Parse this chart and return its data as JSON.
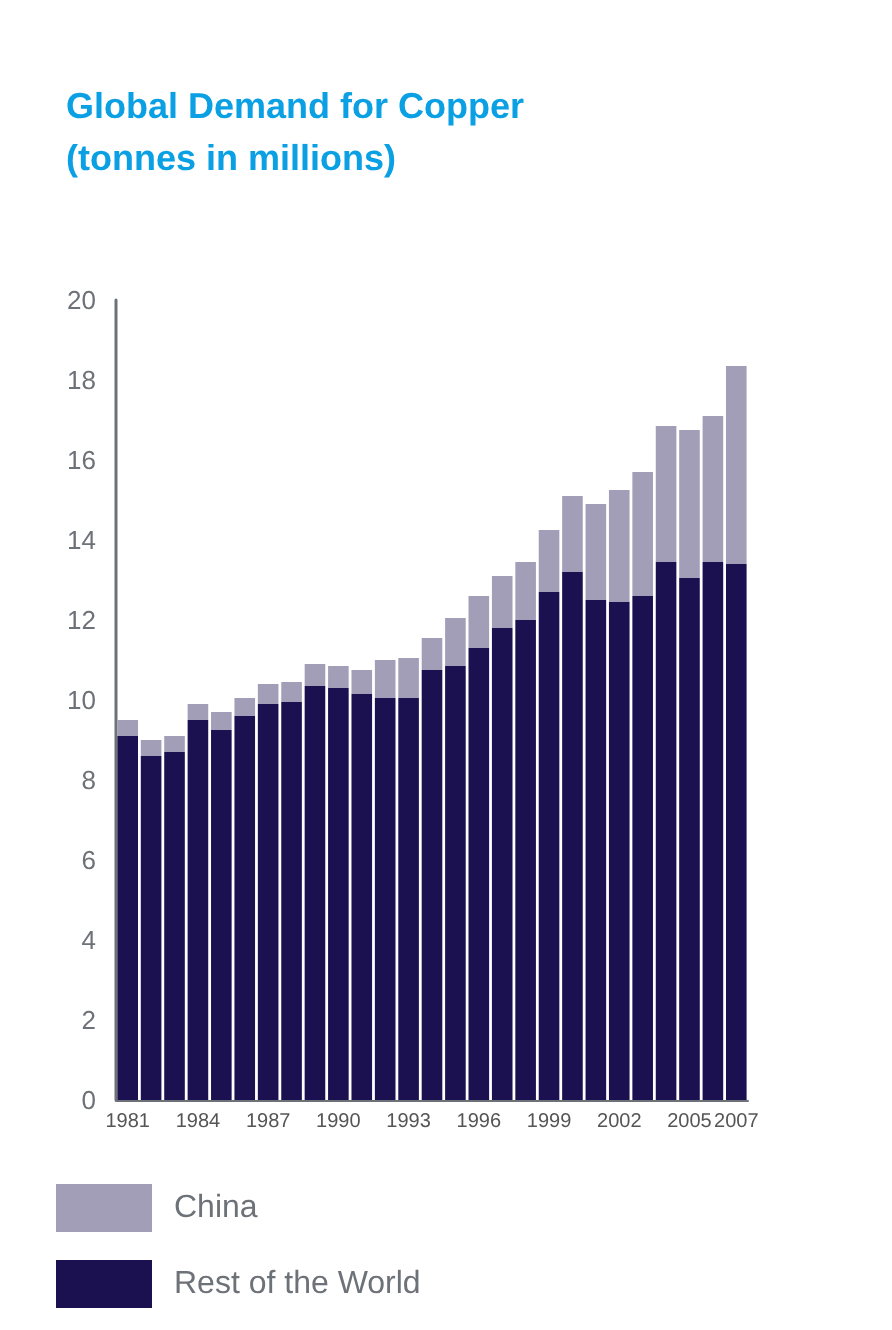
{
  "chart_data": {
    "type": "bar",
    "title": "Global Demand for Copper\n(tonnes in millions)",
    "stacked": true,
    "categories": [
      "1981",
      null,
      null,
      "1984",
      null,
      null,
      "1987",
      null,
      null,
      "1990",
      null,
      null,
      "1993",
      null,
      null,
      "1996",
      null,
      null,
      "1999",
      null,
      null,
      "2002",
      null,
      null,
      "2005",
      null,
      "2007"
    ],
    "series": [
      {
        "name": "Rest of the World",
        "color": "#1b1050",
        "values": [
          9.1,
          8.6,
          8.7,
          9.5,
          9.25,
          9.6,
          9.9,
          9.95,
          10.35,
          10.3,
          10.15,
          10.05,
          10.05,
          10.75,
          10.85,
          11.3,
          11.8,
          12.0,
          12.7,
          13.2,
          12.5,
          12.45,
          12.6,
          13.45,
          13.05,
          13.45,
          13.4
        ]
      },
      {
        "name": "China",
        "color": "#a39eb8",
        "values": [
          0.4,
          0.4,
          0.4,
          0.4,
          0.45,
          0.45,
          0.5,
          0.5,
          0.55,
          0.55,
          0.6,
          0.95,
          1.0,
          0.8,
          1.2,
          1.3,
          1.3,
          1.45,
          1.55,
          1.9,
          2.4,
          2.8,
          3.1,
          3.4,
          3.7,
          3.65,
          4.95
        ]
      }
    ],
    "ylim": [
      0,
      20
    ],
    "yticks": [
      0,
      2,
      4,
      6,
      8,
      10,
      12,
      14,
      16,
      18,
      20
    ],
    "grid": false,
    "legend": "bottom left"
  }
}
